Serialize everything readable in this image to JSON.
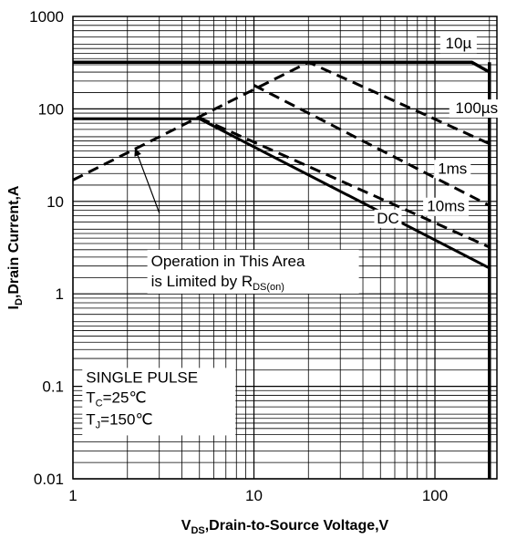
{
  "chart_data": {
    "type": "line",
    "xlabel": {
      "main": "V",
      "sub": "DS",
      "rest": ",Drain-to-Source Voltage,V"
    },
    "ylabel": {
      "main": "I",
      "sub": "D",
      "rest": ",Drain Current,A"
    },
    "xscale": "log",
    "yscale": "log",
    "xlim": [
      1,
      220
    ],
    "ylim": [
      0.01,
      1000
    ],
    "xticks": [
      1,
      10,
      100
    ],
    "xtick_labels": [
      "1",
      "10",
      "100"
    ],
    "yticks": [
      0.01,
      0.1,
      1,
      10,
      100,
      1000
    ],
    "ytick_labels": [
      "0.01",
      "0.1",
      "1",
      "10",
      "100",
      "1000"
    ],
    "grid": true,
    "series": [
      {
        "name": "10µ",
        "style": "solid-thick",
        "points": [
          [
            1,
            320
          ],
          [
            160,
            320
          ],
          [
            200,
            250
          ]
        ]
      },
      {
        "name": "100µs",
        "style": "dashed",
        "points": [
          [
            1,
            17
          ],
          [
            20,
            320
          ],
          [
            200,
            42
          ]
        ]
      },
      {
        "name": "1ms",
        "style": "dashed",
        "points": [
          [
            10,
            180
          ],
          [
            200,
            9
          ]
        ]
      },
      {
        "name": "10ms",
        "style": "dashed",
        "points": [
          [
            5,
            80
          ],
          [
            200,
            3.2
          ]
        ]
      },
      {
        "name": "DC",
        "style": "solid",
        "points": [
          [
            1,
            78
          ],
          [
            5,
            78
          ],
          [
            200,
            1.9
          ]
        ]
      },
      {
        "name": "",
        "style": "solid-thick",
        "points": [
          [
            200,
            320
          ],
          [
            200,
            0.01
          ]
        ]
      }
    ],
    "series_labels": [
      {
        "text": "10µ",
        "x": 135,
        "y": 450
      },
      {
        "text": "100µs",
        "x": 170,
        "y": 90
      },
      {
        "text": "1ms",
        "x": 125,
        "y": 20
      },
      {
        "text": "10ms",
        "x": 115,
        "y": 7.8
      },
      {
        "text": "DC",
        "x": 55,
        "y": 5.8
      }
    ],
    "annotation": {
      "line1": "Operation in This Area",
      "line2_main": "is Limited by R",
      "line2_sub": "DS(on)",
      "x": 2.7,
      "y": 1.9,
      "arrow_from": [
        3,
        7.5
      ],
      "arrow_to": [
        2.2,
        38
      ]
    },
    "conditions": {
      "line1": "SINGLE PULSE",
      "line2": {
        "main": "T",
        "sub": "C",
        "rest": "=25℃"
      },
      "line3": {
        "main": "T",
        "sub": "J",
        "rest": "=150℃"
      },
      "x": 1.18,
      "y": 0.11
    }
  }
}
